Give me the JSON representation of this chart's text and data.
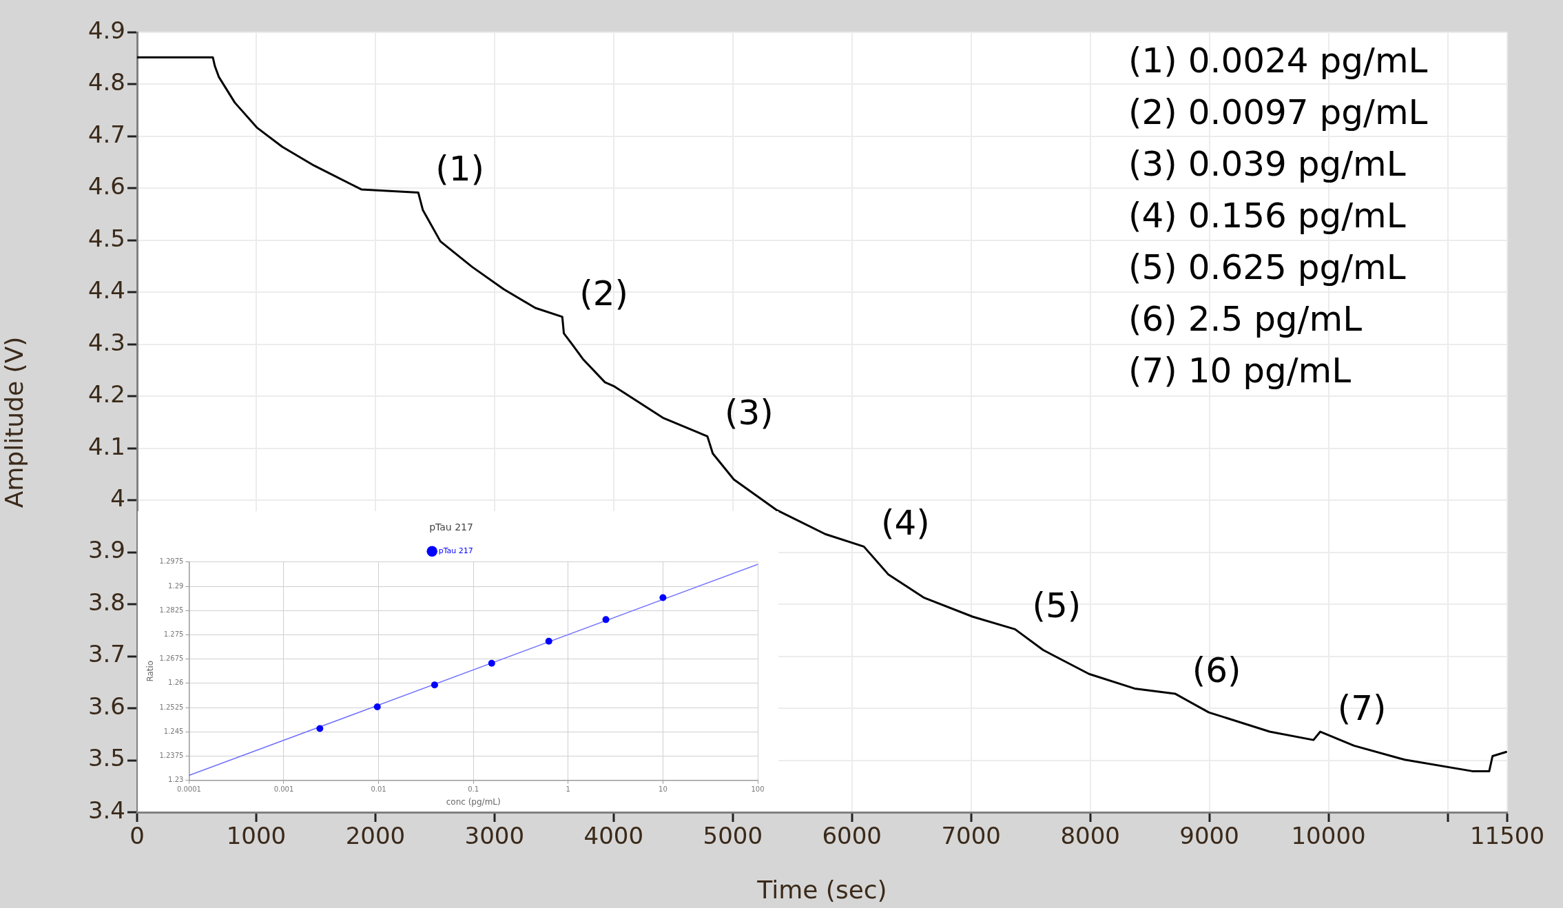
{
  "chart_data": [
    {
      "type": "line",
      "xlabel": "Time (sec)",
      "ylabel": "Amplitude (V)",
      "x": [
        0,
        636,
        653,
        687,
        820,
        1005,
        1218,
        1484,
        1882,
        2360,
        2399,
        2546,
        2812,
        3077,
        3343,
        3569,
        3582,
        3652,
        3741,
        3927,
        4006,
        4419,
        4787,
        4832,
        5009,
        5363,
        5776,
        6100,
        6307,
        6602,
        7015,
        7369,
        7605,
        7990,
        8372,
        8712,
        8996,
        9506,
        9874,
        9931,
        10214,
        10640,
        11207,
        11349,
        11377,
        11491
      ],
      "series": [
        {
          "color": "#000000",
          "values": [
            4.852,
            4.852,
            4.835,
            4.814,
            4.765,
            4.717,
            4.68,
            4.644,
            4.598,
            4.592,
            4.558,
            4.498,
            4.449,
            4.406,
            4.37,
            4.353,
            4.321,
            4.3,
            4.272,
            4.227,
            4.219,
            4.158,
            4.123,
            4.09,
            4.04,
            3.982,
            3.935,
            3.911,
            3.857,
            3.813,
            3.776,
            3.752,
            3.712,
            3.666,
            3.638,
            3.628,
            3.592,
            3.555,
            3.539,
            3.555,
            3.528,
            3.501,
            3.479,
            3.479,
            3.508,
            3.516
          ]
        }
      ],
      "xlim": [
        0,
        11500
      ],
      "xticks": [
        0,
        1000,
        2000,
        3000,
        4000,
        5000,
        6000,
        7000,
        8000,
        9000,
        10000,
        {
          "value": 11000,
          "label": null
        },
        11500
      ],
      "ylim": [
        3.4,
        4.9
      ],
      "yticks": [
        3.4,
        3.5,
        3.6,
        3.7,
        3.8,
        3.9,
        {
          "value": 4,
          "label": "4"
        },
        4.1,
        4.2,
        4.3,
        4.4,
        4.5,
        4.6,
        4.7,
        4.8,
        4.9
      ],
      "grid": true,
      "legend": false,
      "marker": "none",
      "line_style": "solid",
      "annotations": [
        {
          "text": "(1)",
          "x": 2360,
          "y": 4.592
        },
        {
          "text": "(2)",
          "x": 3569,
          "y": 4.353
        },
        {
          "text": "(3)",
          "x": 4787,
          "y": 4.123
        },
        {
          "text": "(4)",
          "x": 6100,
          "y": 3.911
        },
        {
          "text": "(5)",
          "x": 7369,
          "y": 3.752
        },
        {
          "text": "(6)",
          "x": 8712,
          "y": 3.628
        },
        {
          "text": "(7)",
          "x": 9931,
          "y": 3.555
        },
        "(1) 0.0024 pg/mL",
        "(2) 0.0097 pg/mL",
        "(3) 0.039 pg/mL",
        "(4) 0.156 pg/mL",
        "(5) 0.625 pg/mL",
        "(6) 2.5 pg/mL",
        "(7) 10 pg/mL"
      ]
    },
    {
      "type": "scatter",
      "title": "pTau 217",
      "xlabel": "conc (pg/mL)",
      "ylabel": "Ratio",
      "log": "x",
      "grid": true,
      "legend": "top",
      "series": [
        {
          "name": "pTau 217",
          "type": "scatter",
          "marker": "circle",
          "color": "#0000ff",
          "x": [
            0.0024,
            0.0097,
            0.039,
            0.156,
            0.625,
            2.5,
            10
          ],
          "values": [
            1.246,
            1.2527,
            1.2595,
            1.2662,
            1.273,
            1.2797,
            1.2865
          ]
        },
        {
          "type": "line",
          "marker": "none",
          "line_style": "solid",
          "color": "#7070ff",
          "x": [
            0.0001,
            100
          ],
          "values": [
            1.2315,
            1.2968
          ]
        }
      ],
      "xlim": [
        0.0001,
        100
      ],
      "xticks": [
        0.0001,
        0.001,
        0.01,
        0.1,
        1,
        10,
        100
      ],
      "ylim": [
        1.23,
        1.2975
      ],
      "yticks": [
        1.23,
        1.2375,
        1.245,
        1.2525,
        1.26,
        1.2675,
        1.275,
        1.2825,
        1.29,
        1.2975
      ]
    }
  ]
}
